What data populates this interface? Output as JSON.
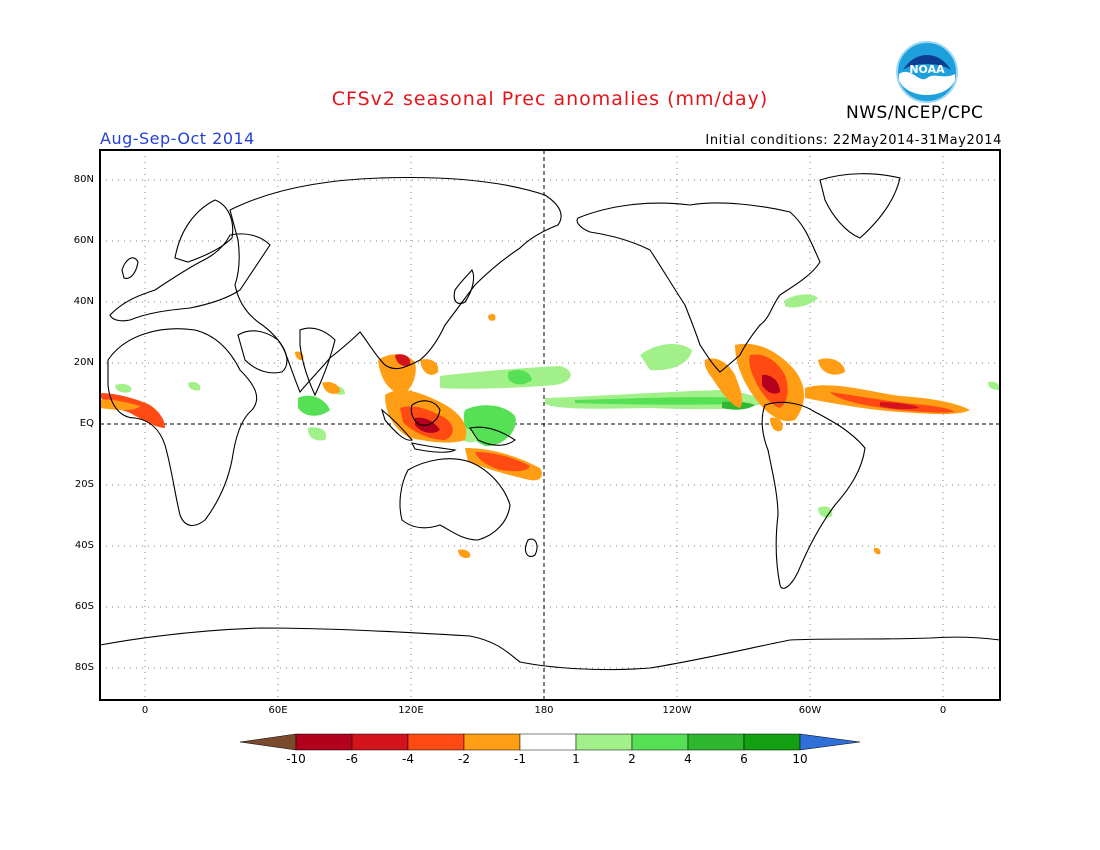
{
  "header": {
    "title": "CFSv2 seasonal Prec anomalies (mm/day)",
    "agency": "NWS/NCEP/CPC",
    "logo_text": "NOAA",
    "period": "Aug-Sep-Oct 2014",
    "initial_conditions": "Initial conditions: 22May2014-31May2014"
  },
  "map": {
    "projection": "equirectangular",
    "lon_range": [
      -30,
      378
    ],
    "lat_range": [
      -90,
      90
    ],
    "lat_labels": [
      "80N",
      "60N",
      "40N",
      "20N",
      "EQ",
      "20S",
      "40S",
      "60S",
      "80S"
    ],
    "lon_labels": [
      "0",
      "60E",
      "120E",
      "180",
      "120W",
      "60W",
      "0"
    ],
    "colors": {
      "frame": "#000000",
      "grid": "#808080",
      "title": "#e4141b",
      "period": "#2540d8"
    }
  },
  "colorbar": {
    "labels": [
      "-10",
      "-6",
      "-4",
      "-2",
      "-1",
      "1",
      "2",
      "4",
      "6",
      "10"
    ],
    "colors": [
      "#7b4a2c",
      "#b3001d",
      "#d4141b",
      "#ff4a14",
      "#ff9e14",
      "#ffffff",
      "#a1f08a",
      "#55e055",
      "#2fb82f",
      "#12a012",
      "#2f6fd8"
    ]
  },
  "anomalies": {
    "negative_regions": [
      "Maritime Continent",
      "South China Sea",
      "Coral Sea",
      "Central America",
      "Caribbean",
      "Tropical Atlantic",
      "West Africa coast"
    ],
    "positive_regions": [
      "Central Pacific ITCZ",
      "Western Pacific",
      "Western Indian Ocean",
      "Eastern Pacific",
      "Brazil"
    ]
  }
}
